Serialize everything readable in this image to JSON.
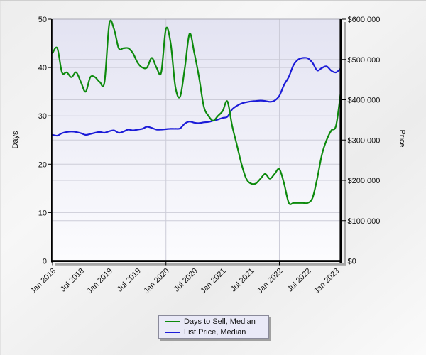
{
  "chart_data": {
    "type": "line",
    "title": "",
    "legend_position": "bottom",
    "x_axis": {
      "tick_labels": [
        "Jan 2018",
        "Jul 2018",
        "Jan 2019",
        "Jul 2019",
        "Jan 2020",
        "Jul 2020",
        "Jan 2021",
        "Jul 2021",
        "Jan 2022",
        "Jul 2022",
        "Jan 2023"
      ],
      "gridline_months": [
        "Jan 2020",
        "Jan 2022"
      ]
    },
    "left_axis": {
      "title": "Days",
      "min": 0,
      "max": 50,
      "tick_labels": [
        "0",
        "10",
        "20",
        "30",
        "40",
        "50"
      ]
    },
    "right_axis": {
      "title": "Price",
      "min": 0,
      "max": 600000,
      "tick_labels": [
        "$0",
        "$100,000",
        "$200,000",
        "$300,000",
        "$400,000",
        "$500,000",
        "$600,000"
      ]
    },
    "months": [
      "Jan 2018",
      "Feb 2018",
      "Mar 2018",
      "Apr 2018",
      "May 2018",
      "Jun 2018",
      "Jul 2018",
      "Aug 2018",
      "Sep 2018",
      "Oct 2018",
      "Nov 2018",
      "Dec 2018",
      "Jan 2019",
      "Feb 2019",
      "Mar 2019",
      "Apr 2019",
      "May 2019",
      "Jun 2019",
      "Jul 2019",
      "Aug 2019",
      "Sep 2019",
      "Oct 2019",
      "Nov 2019",
      "Dec 2019",
      "Jan 2020",
      "Feb 2020",
      "Mar 2020",
      "Apr 2020",
      "May 2020",
      "Jun 2020",
      "Jul 2020",
      "Aug 2020",
      "Sep 2020",
      "Oct 2020",
      "Nov 2020",
      "Dec 2020",
      "Jan 2021",
      "Feb 2021",
      "Mar 2021",
      "Apr 2021",
      "May 2021",
      "Jun 2021",
      "Jul 2021",
      "Aug 2021",
      "Sep 2021",
      "Oct 2021",
      "Nov 2021",
      "Dec 2021",
      "Jan 2022",
      "Feb 2022",
      "Mar 2022",
      "Apr 2022",
      "May 2022",
      "Jun 2022",
      "Jul 2022",
      "Aug 2022",
      "Sep 2022",
      "Oct 2022",
      "Nov 2022",
      "Dec 2022",
      "Jan 2023",
      "Feb 2023"
    ],
    "series": [
      {
        "name": "Days to Sell, Median",
        "axis": "left",
        "color": "#0d8a0d",
        "values": [
          43,
          44,
          39,
          39,
          38,
          39,
          37,
          35,
          38,
          38,
          37,
          37,
          49,
          48,
          44,
          44,
          44,
          43,
          41,
          40,
          40,
          42,
          40,
          39,
          48,
          45,
          36,
          34,
          40,
          47,
          43,
          38,
          32,
          30,
          29,
          30,
          31,
          33,
          28,
          24,
          20,
          17,
          16,
          16,
          17,
          18,
          17,
          18,
          19,
          16,
          12,
          12,
          12,
          12,
          12,
          13,
          17,
          22,
          25,
          27,
          28,
          35
        ]
      },
      {
        "name": "List Price, Median",
        "axis": "right",
        "color": "#1b1bd8",
        "values": [
          313000,
          311000,
          317000,
          320000,
          321000,
          320000,
          317000,
          313000,
          315000,
          318000,
          320000,
          318000,
          322000,
          324000,
          318000,
          321000,
          326000,
          324000,
          326000,
          328000,
          333000,
          330000,
          326000,
          326000,
          327000,
          328000,
          328000,
          329000,
          341000,
          346000,
          343000,
          342000,
          344000,
          345000,
          348000,
          351000,
          355000,
          358000,
          376000,
          385000,
          391000,
          394000,
          396000,
          397000,
          398000,
          397000,
          395000,
          398000,
          410000,
          437000,
          457000,
          486000,
          500000,
          504000,
          503000,
          492000,
          473000,
          479000,
          483000,
          472000,
          468000,
          478000
        ]
      }
    ]
  },
  "legend": {
    "items": [
      {
        "label": "Days to Sell, Median",
        "color": "#0d8a0d"
      },
      {
        "label": "List Price, Median",
        "color": "#1b1bd8"
      }
    ]
  },
  "colors": {
    "plot_bg_top": "#e3e3f2",
    "plot_bg_bottom": "#fcfcfe",
    "grid": "#ccccd8",
    "axis": "#000000",
    "axis_shadow": "#a6a6a6",
    "plot_top_border": "#a9a9b4",
    "legend_bg": "#e9e9f7",
    "legend_border": "#8a8a9a"
  }
}
